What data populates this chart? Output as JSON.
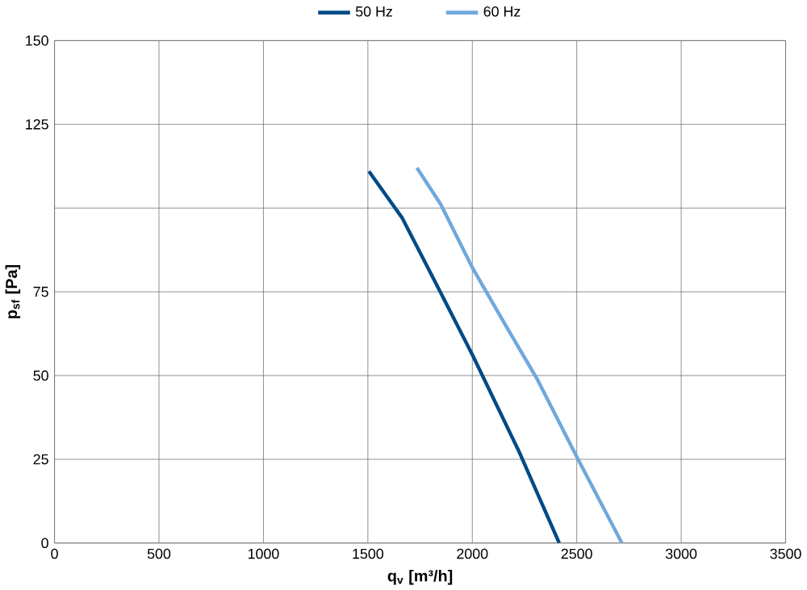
{
  "chart_data": {
    "type": "line",
    "xlabel": "q$_{v}$ [m³/h]",
    "ylabel": "p$_{sf}$ [Pa]",
    "xlim": [
      0,
      3500
    ],
    "ylim": [
      0,
      150
    ],
    "xticks": [
      0,
      500,
      1000,
      1500,
      2000,
      2500,
      3000,
      3500
    ],
    "yticks": [
      0,
      25,
      50,
      75,
      {
        "value": 100,
        "label": null
      },
      125,
      150
    ],
    "grid": true,
    "legend": "top",
    "marker": "none",
    "line_style": "solid",
    "series": [
      {
        "name": "50 Hz",
        "color": "#004a87",
        "x": [
          1505,
          1665,
          1830,
          2002,
          2226,
          2416
        ],
        "values": [
          111,
          97,
          77,
          56,
          27,
          0
        ]
      },
      {
        "name": "60 Hz",
        "color": "#6fa8dc",
        "x": [
          1735,
          1850,
          2002,
          2150,
          2310,
          2506,
          2716
        ],
        "values": [
          112,
          101,
          82,
          66,
          49,
          25,
          0
        ]
      }
    ]
  }
}
